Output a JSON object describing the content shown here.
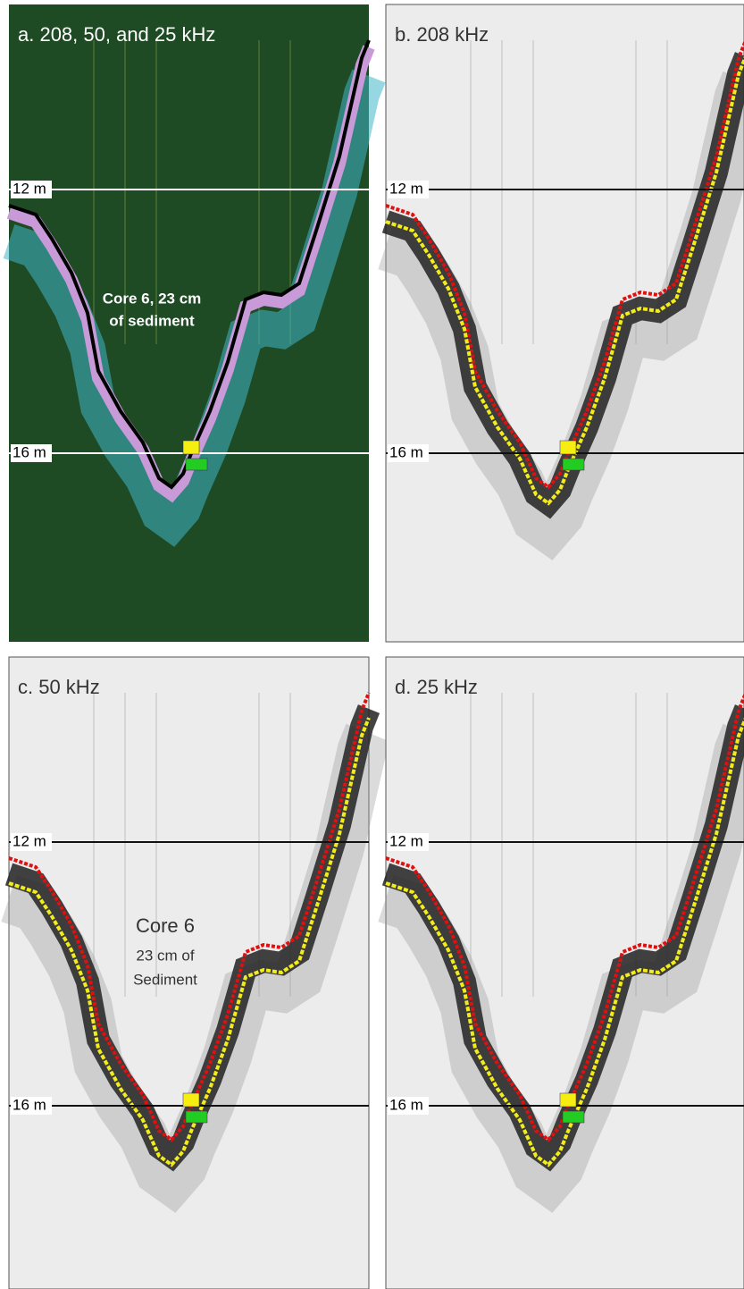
{
  "panels": [
    {
      "title": "a. 208, 50, and 25 kHz",
      "depth_labels": [
        "12 m",
        "16 m"
      ],
      "annotation": [
        "Core 6, 23 cm",
        "of sediment"
      ]
    },
    {
      "title": "b. 208 kHz",
      "depth_labels": [
        "12 m",
        "16 m"
      ]
    },
    {
      "title": "c.  50 kHz",
      "depth_labels": [
        "12 m",
        "16 m"
      ],
      "annotation": [
        "Core 6",
        "23 cm of",
        "Sediment"
      ]
    },
    {
      "title": "d. 25 kHz",
      "depth_labels": [
        "12 m",
        "16 m"
      ]
    }
  ]
}
